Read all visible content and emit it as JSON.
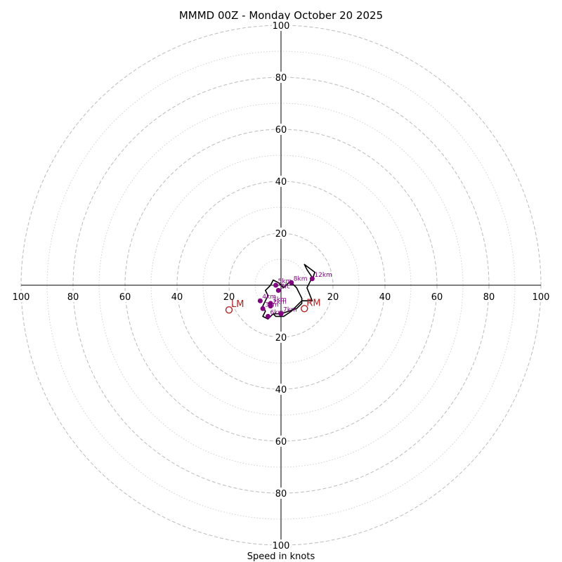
{
  "chart_data": {
    "type": "hodograph",
    "title": "MMMD 00Z - Monday October 20 2025",
    "xlabel": "Speed in knots",
    "unit": "knots",
    "range": 100,
    "ring_major": [
      20,
      40,
      60,
      80,
      100
    ],
    "ring_minor": [
      10,
      30,
      50,
      70,
      90
    ],
    "axis_ticks": {
      "left": [
        "100",
        "80",
        "60",
        "40",
        "20"
      ],
      "right": [
        "20",
        "40",
        "60",
        "80",
        "100"
      ],
      "top": [
        "20",
        "40",
        "60",
        "80",
        "100"
      ],
      "bottom": [
        "20",
        "40",
        "60",
        "80",
        "100"
      ]
    },
    "colors": {
      "trace": "#000000",
      "height_markers": "#800080",
      "motion": "#b22222",
      "ring_major": "#bbbbbb",
      "ring_minor": "#cccccc"
    },
    "trace": [
      [
        -3,
        -11
      ],
      [
        -5,
        -13
      ],
      [
        -7,
        -12
      ],
      [
        -6,
        -10
      ],
      [
        -7,
        -8
      ],
      [
        -6,
        -6
      ],
      [
        -5,
        -4
      ],
      [
        -6,
        -2
      ],
      [
        -4,
        0
      ],
      [
        -3,
        2
      ],
      [
        -1,
        1
      ],
      [
        1,
        -1
      ],
      [
        3,
        1
      ],
      [
        4,
        1
      ],
      [
        6,
        -1
      ],
      [
        8,
        -5
      ],
      [
        8,
        -7
      ],
      [
        6,
        -9
      ],
      [
        3,
        -10
      ],
      [
        0,
        -11
      ],
      [
        -3,
        -11
      ],
      [
        -2,
        -12
      ],
      [
        1,
        -12
      ],
      [
        4,
        -10
      ],
      [
        6,
        -8
      ],
      [
        8,
        -6
      ],
      [
        10,
        -6
      ],
      [
        12,
        -6
      ],
      [
        10,
        -1
      ],
      [
        11,
        1
      ],
      [
        12,
        3
      ],
      [
        10,
        6
      ],
      [
        9,
        8
      ],
      [
        13,
        5
      ],
      [
        12,
        2
      ]
    ],
    "height_points": [
      {
        "label": "Sfc",
        "u": -1,
        "v": -2
      },
      {
        "label": "1km",
        "u": -4,
        "v": -7
      },
      {
        "label": "2km",
        "u": -4,
        "v": -8
      },
      {
        "label": "3km",
        "u": -7,
        "v": -9
      },
      {
        "label": "4km",
        "u": -8,
        "v": -6
      },
      {
        "label": "5km",
        "u": -2,
        "v": 0
      },
      {
        "label": "6km",
        "u": -5,
        "v": -12
      },
      {
        "label": "7km",
        "u": 0,
        "v": -11
      },
      {
        "label": "8km",
        "u": 4,
        "v": 1
      },
      {
        "label": "12km",
        "u": 12,
        "v": 2.5
      }
    ],
    "storm_motion": [
      {
        "label": "LM",
        "u": -20,
        "v": -9.5
      },
      {
        "label": "RM",
        "u": 9,
        "v": -9
      }
    ]
  }
}
